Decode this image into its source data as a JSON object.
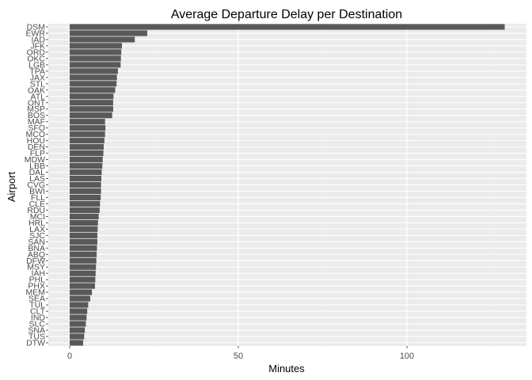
{
  "chart_data": {
    "type": "bar",
    "orientation": "horizontal",
    "title": "Average Departure Delay per Destination",
    "xlabel": "Minutes",
    "ylabel": "Airport",
    "xlim": [
      -7,
      135
    ],
    "x_ticks": [
      0,
      50,
      100
    ],
    "grid": true,
    "legend": "none",
    "colors": {
      "bar": "#595959",
      "panel": "#ebebeb",
      "grid_major": "#ffffff",
      "grid_minor": "#f2f2f2",
      "tick_text": "#4d4d4d"
    },
    "categories": [
      "DSM",
      "EWR",
      "IAD",
      "JFK",
      "ORD",
      "OKC",
      "LGB",
      "TPA",
      "JAX",
      "STL",
      "OAK",
      "ATL",
      "ONT",
      "MSP",
      "BOS",
      "MAF",
      "SFO",
      "MCO",
      "HOU",
      "DEN",
      "FLP",
      "MDW",
      "LBB",
      "DAL",
      "LAS",
      "CVG",
      "BWI",
      "FLL",
      "CLE",
      "RDU",
      "MCI",
      "HRL",
      "LAX",
      "SJC",
      "SAN",
      "BNA",
      "ABQ",
      "DFW",
      "MSY",
      "IAH",
      "PHL",
      "PHX",
      "MEM",
      "SEA",
      "TUL",
      "CLT",
      "IND",
      "SLC",
      "SNA",
      "TUS",
      "DTW"
    ],
    "values": [
      129,
      23,
      19.3,
      15.5,
      15.3,
      15.2,
      15.1,
      14.3,
      14.0,
      13.9,
      13.5,
      13.0,
      12.9,
      12.9,
      12.6,
      10.5,
      10.6,
      10.5,
      10.3,
      10.1,
      10.0,
      9.8,
      9.7,
      9.5,
      9.4,
      9.3,
      9.3,
      9.2,
      9.0,
      8.9,
      8.6,
      8.4,
      8.3,
      8.2,
      8.2,
      8.1,
      8.0,
      7.9,
      7.8,
      7.7,
      7.6,
      7.5,
      6.6,
      6.1,
      5.5,
      5.2,
      5.0,
      4.8,
      4.5,
      4.3,
      4.0
    ]
  }
}
